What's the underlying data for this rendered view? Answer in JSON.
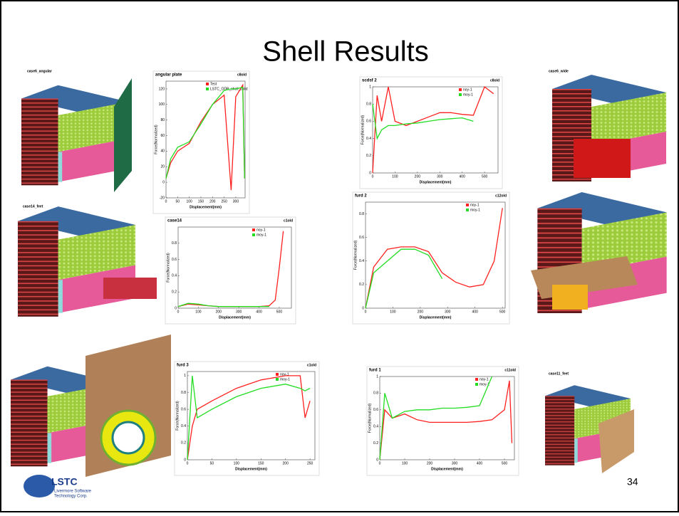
{
  "title": "Shell Results",
  "page_number": "34",
  "logo": {
    "name": "LSTC",
    "line1": "Livermore Software",
    "line2": "Technology Corp."
  },
  "model_labels": [
    "case6_angular",
    "case6_wide",
    "case14_feet",
    "case11_feet"
  ],
  "charts": [
    {
      "type": "line",
      "title": "angular plate",
      "tag": "c8old",
      "x_label": "Displacement(mm)",
      "y_label": "Force(Normalized)",
      "xlim": [
        0,
        340
      ],
      "xticks": [
        0,
        50,
        100,
        150,
        200,
        250,
        300
      ],
      "ylim": [
        -20,
        130
      ],
      "yticks": [
        -20,
        0,
        20,
        40,
        60,
        80,
        100,
        120
      ],
      "x": [
        0,
        20,
        50,
        100,
        150,
        200,
        250,
        280,
        300,
        330,
        338
      ],
      "series": [
        {
          "name": "Test",
          "color": "#ff2020",
          "values": [
            5,
            25,
            40,
            50,
            78,
            100,
            112,
            -10,
            110,
            125,
            5
          ]
        },
        {
          "name": "LSTC_ODB_shell_solid",
          "color": "#22dd22",
          "values": [
            5,
            30,
            45,
            52,
            75,
            100,
            118,
            120,
            120,
            122,
            5
          ]
        }
      ]
    },
    {
      "type": "line",
      "title": "scdsf 2",
      "tag": "c8old",
      "x_label": "Displacement(mm)",
      "y_label": "Force(Normalized)",
      "xlim": [
        0,
        560
      ],
      "xticks": [
        0,
        100,
        200,
        300,
        400,
        500
      ],
      "ylim": [
        0,
        1
      ],
      "yticks": [
        0,
        0.2,
        0.4,
        0.6,
        0.8,
        1
      ],
      "x": [
        0,
        20,
        40,
        70,
        100,
        150,
        200,
        250,
        300,
        350,
        400,
        450,
        500,
        540
      ],
      "series": [
        {
          "name": "noy-1",
          "color": "#ff2020",
          "values": [
            0,
            0.9,
            0.6,
            1.0,
            0.6,
            0.55,
            0.6,
            0.65,
            0.7,
            0.7,
            0.68,
            0.67,
            1.0,
            0.92
          ]
        },
        {
          "name": "moy-1",
          "color": "#22dd22",
          "values": [
            0.8,
            0.4,
            0.5,
            0.55,
            0.55,
            0.57,
            0.58,
            0.6,
            0.62,
            0.63,
            0.64,
            0.6,
            null,
            null
          ]
        }
      ]
    },
    {
      "type": "line",
      "title": "case14",
      "tag": "c1old",
      "x_label": "Displacement(mm)",
      "y_label": "Force(Normalized)",
      "xlim": [
        0,
        560
      ],
      "xticks": [
        0,
        100,
        200,
        300,
        400,
        500
      ],
      "ylim": [
        0,
        1
      ],
      "yticks": [
        0,
        0.2,
        0.4,
        0.6,
        0.8
      ],
      "x": [
        0,
        50,
        100,
        150,
        200,
        250,
        300,
        350,
        400,
        450,
        480,
        500,
        520
      ],
      "series": [
        {
          "name": "noy-1",
          "color": "#ff2020",
          "values": [
            0.02,
            0.05,
            0.04,
            0.03,
            0.02,
            0.02,
            0.02,
            0.02,
            0.02,
            0.03,
            0.1,
            0.5,
            0.95
          ]
        },
        {
          "name": "moy-1",
          "color": "#22dd22",
          "values": [
            0.02,
            0.06,
            0.05,
            0.03,
            0.02,
            0.02,
            0.02,
            0.02,
            0.02,
            0.02,
            null,
            null,
            null
          ]
        }
      ]
    },
    {
      "type": "line",
      "title": "furd 2",
      "tag": "c12old",
      "x_label": "Displacement(mm)",
      "y_label": "Force(Normalized)",
      "xlim": [
        0,
        510
      ],
      "xticks": [
        0,
        100,
        200,
        300,
        400,
        500
      ],
      "ylim": [
        0,
        0.9
      ],
      "yticks": [
        0,
        0.2,
        0.4,
        0.6,
        0.8
      ],
      "x": [
        0,
        30,
        80,
        130,
        180,
        230,
        280,
        330,
        380,
        430,
        470,
        500
      ],
      "series": [
        {
          "name": "noy-1",
          "color": "#ff2020",
          "values": [
            0,
            0.35,
            0.5,
            0.52,
            0.52,
            0.48,
            0.3,
            0.22,
            0.18,
            0.2,
            0.4,
            0.85
          ]
        },
        {
          "name": "moy-1",
          "color": "#22dd22",
          "values": [
            0,
            0.3,
            0.4,
            0.5,
            0.5,
            0.45,
            0.25,
            null,
            null,
            null,
            null,
            null
          ]
        }
      ]
    },
    {
      "type": "line",
      "title": "furd 3",
      "tag": "c1old",
      "x_label": "Displacement(mm)",
      "y_label": "Force(Normalized)",
      "xlim": [
        0,
        260
      ],
      "xticks": [
        0,
        50,
        100,
        150,
        200,
        250
      ],
      "ylim": [
        0,
        1.05
      ],
      "yticks": [
        0,
        0.2,
        0.4,
        0.6,
        0.8,
        1
      ],
      "x": [
        0,
        10,
        20,
        50,
        100,
        150,
        200,
        230,
        240,
        250
      ],
      "series": [
        {
          "name": "noy-1",
          "color": "#ff2020",
          "values": [
            0,
            0.4,
            0.6,
            0.7,
            0.85,
            0.95,
            1.0,
            1.0,
            0.5,
            0.7
          ]
        },
        {
          "name": "moy-1",
          "color": "#22dd22",
          "values": [
            0,
            1.0,
            0.5,
            0.6,
            0.75,
            0.85,
            0.9,
            0.85,
            0.82,
            0.85
          ]
        }
      ]
    },
    {
      "type": "line",
      "title": "furd 1",
      "tag": "c11old",
      "x_label": "Displacement(mm)",
      "y_label": "Force(Normalized)",
      "xlim": [
        0,
        540
      ],
      "xticks": [
        0,
        100,
        200,
        300,
        400,
        500
      ],
      "ylim": [
        0,
        1
      ],
      "yticks": [
        0,
        0.2,
        0.4,
        0.6,
        0.8,
        1
      ],
      "x": [
        0,
        20,
        50,
        100,
        150,
        200,
        250,
        300,
        350,
        400,
        450,
        500,
        520,
        530
      ],
      "series": [
        {
          "name": "noy-1",
          "color": "#ff2020",
          "values": [
            0,
            0.6,
            0.5,
            0.55,
            0.48,
            0.45,
            0.45,
            0.45,
            0.45,
            0.46,
            0.48,
            0.6,
            0.95,
            0.2
          ]
        },
        {
          "name": "moy-1",
          "color": "#22dd22",
          "values": [
            0,
            0.8,
            0.5,
            0.58,
            0.6,
            0.6,
            0.62,
            0.62,
            0.63,
            0.65,
            1.0,
            null,
            null,
            null
          ]
        }
      ]
    }
  ]
}
